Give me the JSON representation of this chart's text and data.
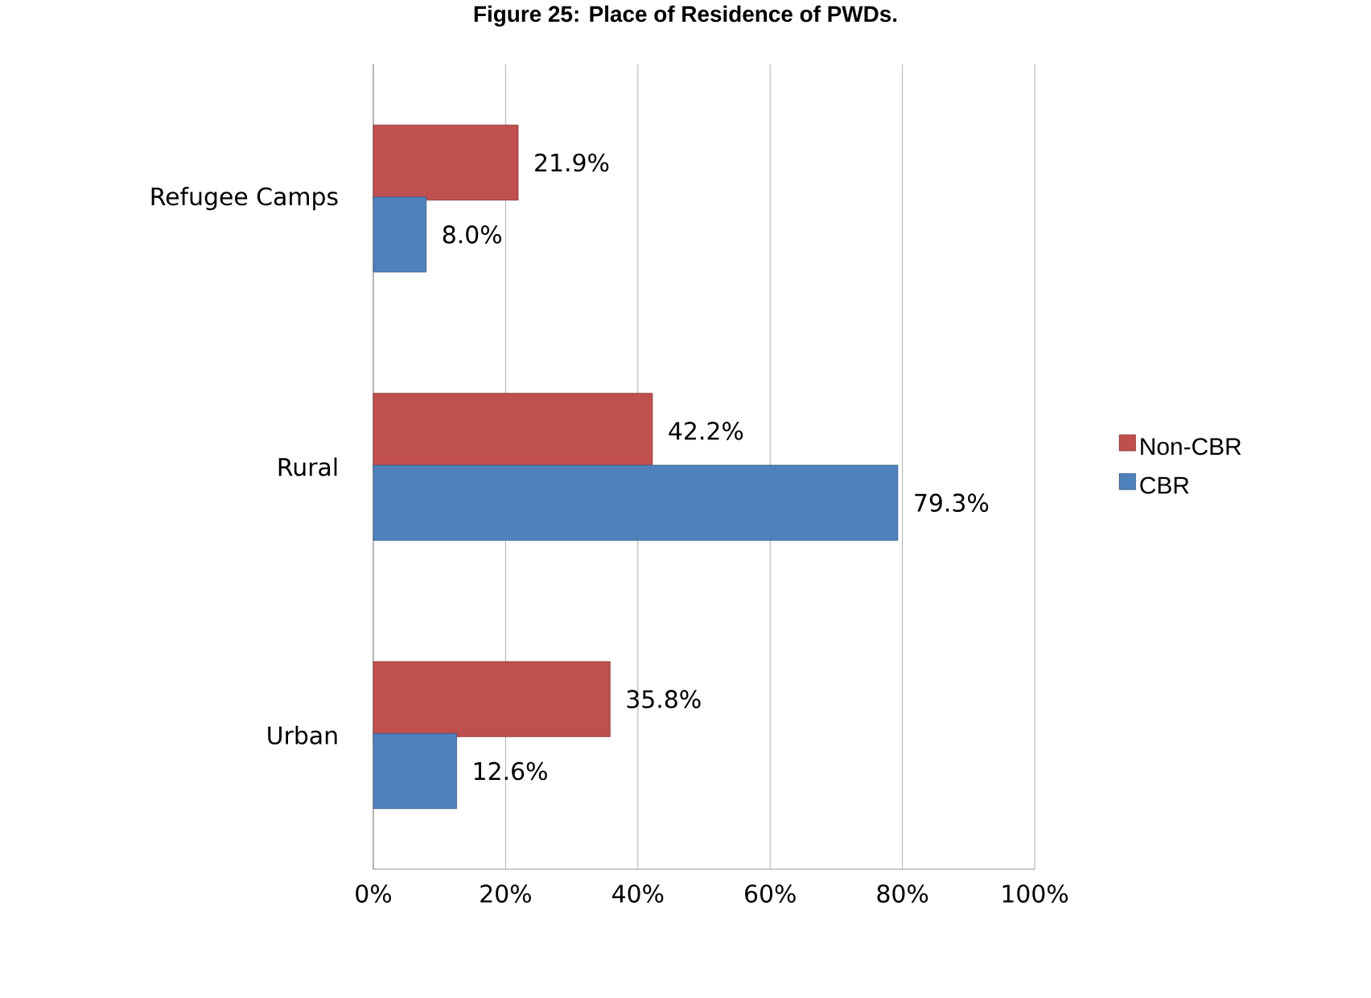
{
  "chart_data": {
    "type": "bar",
    "orientation": "horizontal",
    "title": "Figure 25: Place of Residence of PWDs.",
    "categories": [
      "Refugee Camps",
      "Rural",
      "Urban"
    ],
    "series": [
      {
        "name": "Non-CBR",
        "color": "#c0504d",
        "values": [
          21.9,
          42.2,
          35.8
        ],
        "value_labels": [
          "21.9%",
          "42.2%",
          "35.8%"
        ]
      },
      {
        "name": "CBR",
        "color": "#4f81bd",
        "values": [
          8.0,
          79.3,
          12.6
        ],
        "value_labels": [
          "8.0%",
          "79.3%",
          "12.6%"
        ]
      }
    ],
    "xlim": [
      0,
      100
    ],
    "xticks": [
      {
        "value": 0,
        "label": "0%"
      },
      {
        "value": 20,
        "label": "20%"
      },
      {
        "value": 40,
        "label": "40%"
      },
      {
        "value": 60,
        "label": "60%"
      },
      {
        "value": 80,
        "label": "80%"
      },
      {
        "value": 100,
        "label": "100%"
      }
    ],
    "grid": "x",
    "legend": "right"
  }
}
